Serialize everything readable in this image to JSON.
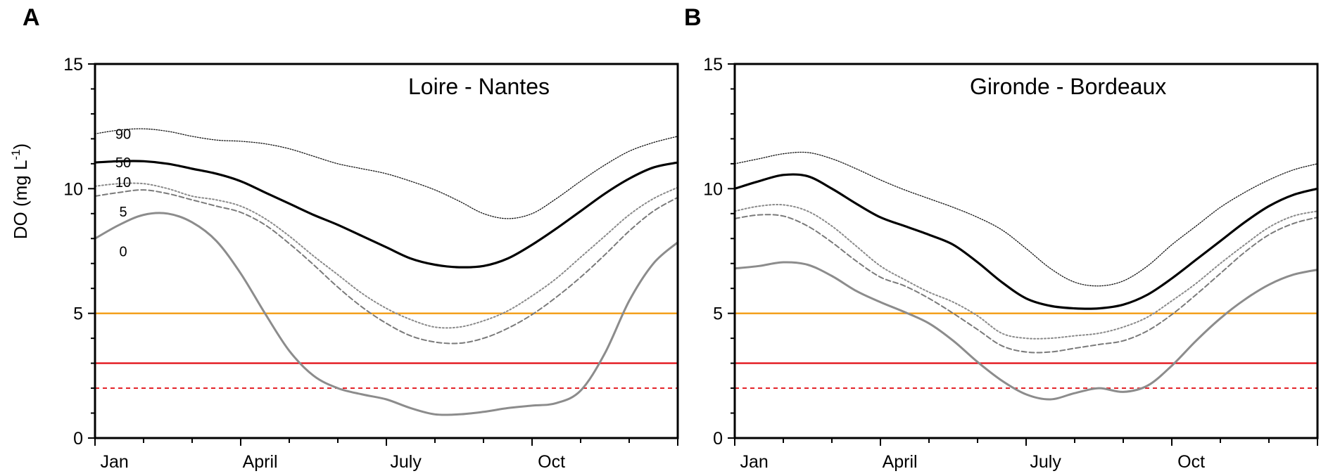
{
  "ylabel": "DO (mg L",
  "ylabel_sup": "-1",
  "ylabel_close": ")",
  "chart_data": [
    {
      "type": "line",
      "panel": "A",
      "title": "Loire - Nantes",
      "ylabel": "DO (mg L-1)",
      "ylim": [
        0,
        15
      ],
      "yticks": [
        "0",
        "5",
        "10",
        "15"
      ],
      "xlim": [
        0,
        12
      ],
      "xticks": [
        {
          "label": "Jan",
          "x": 0.4
        },
        {
          "label": "April",
          "x": 3.4
        },
        {
          "label": "July",
          "x": 6.4
        },
        {
          "label": "Oct",
          "x": 9.4
        }
      ],
      "x": [
        0,
        0.5,
        1,
        1.5,
        2,
        2.5,
        3,
        3.5,
        4,
        4.5,
        5,
        5.5,
        6,
        6.5,
        7,
        7.5,
        8,
        8.5,
        9,
        9.5,
        10,
        10.5,
        11,
        11.5,
        12
      ],
      "series": [
        {
          "name": "90",
          "style": "dotted-black",
          "values": [
            12.2,
            12.35,
            12.4,
            12.3,
            12.1,
            11.95,
            11.9,
            11.8,
            11.6,
            11.3,
            11.0,
            10.8,
            10.6,
            10.3,
            9.95,
            9.5,
            9.0,
            8.8,
            9.0,
            9.6,
            10.3,
            10.95,
            11.5,
            11.85,
            12.1
          ]
        },
        {
          "name": "50",
          "style": "solid-black-thick",
          "values": [
            11.05,
            11.1,
            11.1,
            11.0,
            10.8,
            10.6,
            10.3,
            9.85,
            9.4,
            8.95,
            8.55,
            8.1,
            7.65,
            7.2,
            6.95,
            6.85,
            6.9,
            7.2,
            7.75,
            8.4,
            9.1,
            9.8,
            10.4,
            10.85,
            11.05
          ]
        },
        {
          "name": "10",
          "style": "dotted-grey",
          "values": [
            10.1,
            10.2,
            10.2,
            10.0,
            9.7,
            9.55,
            9.3,
            8.8,
            8.1,
            7.3,
            6.55,
            5.8,
            5.2,
            4.75,
            4.45,
            4.45,
            4.7,
            5.1,
            5.7,
            6.4,
            7.25,
            8.1,
            8.95,
            9.6,
            10.05
          ]
        },
        {
          "name": "5",
          "style": "dashed-grey",
          "values": [
            9.7,
            9.85,
            9.95,
            9.8,
            9.55,
            9.3,
            9.05,
            8.55,
            7.8,
            6.95,
            6.05,
            5.25,
            4.6,
            4.1,
            3.85,
            3.8,
            4.0,
            4.4,
            4.95,
            5.65,
            6.45,
            7.35,
            8.3,
            9.1,
            9.65
          ]
        },
        {
          "name": "0",
          "style": "solid-grey",
          "values": [
            8.0,
            8.55,
            8.95,
            9.0,
            8.65,
            7.9,
            6.6,
            5.0,
            3.5,
            2.5,
            2.0,
            1.75,
            1.55,
            1.2,
            0.95,
            0.95,
            1.05,
            1.2,
            1.3,
            1.4,
            1.9,
            3.4,
            5.5,
            7.0,
            7.85
          ]
        }
      ],
      "thresholds": [
        {
          "value": 5,
          "color": "#F39C12",
          "style": "solid"
        },
        {
          "value": 3,
          "color": "#E3161D",
          "style": "solid"
        },
        {
          "value": 2,
          "color": "#E3161D",
          "style": "dashed"
        }
      ],
      "percentile_labels": [
        "90",
        "50",
        "10",
        "5",
        "0"
      ]
    },
    {
      "type": "line",
      "panel": "B",
      "title": "Gironde -  Bordeaux",
      "ylabel": "",
      "ylim": [
        0,
        15
      ],
      "yticks": [
        "0",
        "5",
        "10",
        "15"
      ],
      "xlim": [
        0,
        12
      ],
      "xticks": [
        {
          "label": "Jan",
          "x": 0.4
        },
        {
          "label": "April",
          "x": 3.4
        },
        {
          "label": "July",
          "x": 6.4
        },
        {
          "label": "Oct",
          "x": 9.4
        }
      ],
      "x": [
        0,
        0.5,
        1,
        1.5,
        2,
        2.5,
        3,
        3.5,
        4,
        4.5,
        5,
        5.5,
        6,
        6.5,
        7,
        7.5,
        8,
        8.5,
        9,
        9.5,
        10,
        10.5,
        11,
        11.5,
        12
      ],
      "series": [
        {
          "name": "90",
          "style": "dotted-black",
          "values": [
            11.0,
            11.2,
            11.4,
            11.45,
            11.2,
            10.8,
            10.35,
            9.95,
            9.6,
            9.25,
            8.85,
            8.35,
            7.6,
            6.8,
            6.25,
            6.1,
            6.3,
            6.9,
            7.75,
            8.5,
            9.25,
            9.85,
            10.35,
            10.75,
            11.0
          ]
        },
        {
          "name": "50",
          "style": "solid-black-thick",
          "values": [
            10.0,
            10.3,
            10.55,
            10.5,
            10.0,
            9.4,
            8.85,
            8.5,
            8.15,
            7.75,
            7.05,
            6.25,
            5.6,
            5.3,
            5.2,
            5.2,
            5.35,
            5.75,
            6.4,
            7.15,
            7.9,
            8.65,
            9.3,
            9.75,
            10.0
          ]
        },
        {
          "name": "10",
          "style": "dotted-grey",
          "values": [
            9.1,
            9.3,
            9.35,
            9.1,
            8.5,
            7.7,
            6.9,
            6.35,
            5.85,
            5.45,
            4.9,
            4.2,
            4.0,
            4.0,
            4.1,
            4.2,
            4.45,
            4.85,
            5.5,
            6.2,
            7.0,
            7.75,
            8.45,
            8.9,
            9.1
          ]
        },
        {
          "name": "5",
          "style": "dashed-grey",
          "values": [
            8.8,
            8.95,
            8.9,
            8.5,
            7.85,
            7.1,
            6.45,
            6.1,
            5.6,
            5.0,
            4.35,
            3.7,
            3.45,
            3.45,
            3.6,
            3.75,
            3.9,
            4.3,
            4.95,
            5.75,
            6.6,
            7.45,
            8.15,
            8.6,
            8.85
          ]
        },
        {
          "name": "0",
          "style": "solid-grey",
          "values": [
            6.8,
            6.9,
            7.05,
            6.95,
            6.5,
            5.9,
            5.45,
            5.05,
            4.6,
            3.9,
            3.05,
            2.3,
            1.75,
            1.55,
            1.8,
            2.0,
            1.85,
            2.1,
            2.9,
            3.9,
            4.8,
            5.55,
            6.15,
            6.55,
            6.75
          ]
        }
      ],
      "thresholds": [
        {
          "value": 5,
          "color": "#F39C12",
          "style": "solid"
        },
        {
          "value": 3,
          "color": "#E3161D",
          "style": "solid"
        },
        {
          "value": 2,
          "color": "#E3161D",
          "style": "dashed"
        }
      ],
      "percentile_labels": []
    }
  ]
}
